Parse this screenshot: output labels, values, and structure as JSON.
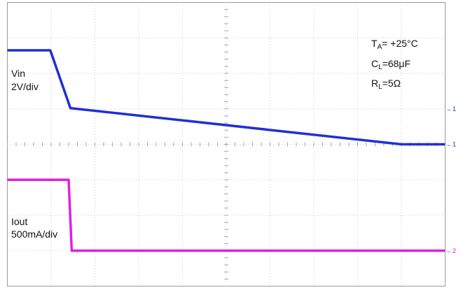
{
  "chart_data": {
    "type": "line",
    "title": "",
    "xlabel": "",
    "ylabel": "",
    "grid": true,
    "grid_divisions": {
      "x": 10,
      "y": 8
    },
    "x_range_div": [
      0,
      10
    ],
    "y_range_div": [
      -4,
      4
    ],
    "series": [
      {
        "name": "Vin",
        "scale": "2V/div",
        "color": "#1f2fd6",
        "x": [
          0,
          0.98,
          1.44,
          9.0,
          10.0
        ],
        "y": [
          2.65,
          2.65,
          1.02,
          0.0,
          0.0
        ]
      },
      {
        "name": "Iout",
        "scale": "500mA/div",
        "color": "#e020e0",
        "x": [
          0,
          1.4,
          1.47,
          10.0
        ],
        "y": [
          -1.0,
          -1.0,
          -3.0,
          -3.0
        ]
      }
    ],
    "channel_labels": [
      {
        "name": "Vin",
        "scale": "2V/div"
      },
      {
        "name": "Iout",
        "scale": "500mA/div"
      }
    ],
    "conditions": [
      {
        "sym": "T",
        "sub": "A",
        "val": "= +25°C"
      },
      {
        "sym": "C",
        "sub": "L",
        "val": "=68μF"
      },
      {
        "sym": "R",
        "sub": "L",
        "val": "=5Ω"
      }
    ],
    "markers": [
      {
        "label": "1",
        "y": 1.0,
        "color": "#1f2fd6"
      },
      {
        "label": "1",
        "y": 0.0,
        "color": "#1f2fd6"
      },
      {
        "label": "2",
        "y": -3.0,
        "color": "#e020e0"
      }
    ]
  }
}
